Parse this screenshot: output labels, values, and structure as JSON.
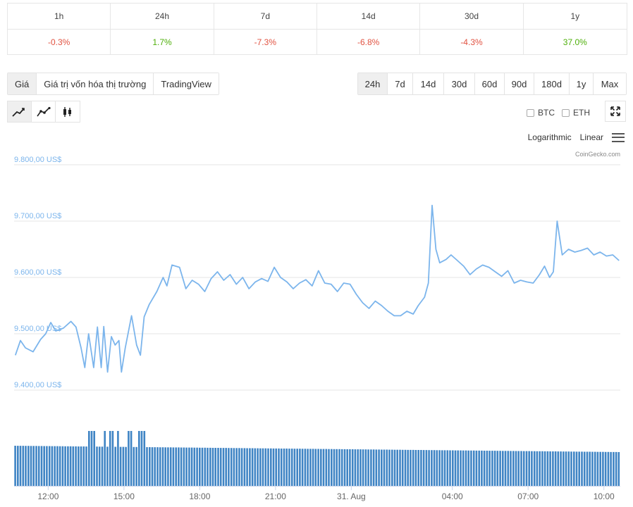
{
  "change_table": [
    {
      "period": "1h",
      "value": "-0.3%",
      "trend": "neg"
    },
    {
      "period": "24h",
      "value": "1.7%",
      "trend": "pos"
    },
    {
      "period": "7d",
      "value": "-7.3%",
      "trend": "neg"
    },
    {
      "period": "14d",
      "value": "-6.8%",
      "trend": "neg"
    },
    {
      "period": "30d",
      "value": "-4.3%",
      "trend": "neg"
    },
    {
      "period": "1y",
      "value": "37.0%",
      "trend": "pos"
    }
  ],
  "view_tabs": {
    "price": "Giá",
    "market_cap": "Giá trị vốn hóa thị trường",
    "tradingview": "TradingView",
    "active": "price"
  },
  "range_tabs": {
    "items": [
      "24h",
      "7d",
      "14d",
      "30d",
      "60d",
      "90d",
      "180d",
      "1y",
      "Max"
    ],
    "active": "24h"
  },
  "chart_types": {
    "items": [
      "line-chart-icon",
      "ohlc-line-icon",
      "candlestick-icon"
    ],
    "active": "line-chart-icon"
  },
  "compare": {
    "btc": "BTC",
    "eth": "ETH"
  },
  "scale": {
    "log": "Logarithmic",
    "linear": "Linear"
  },
  "credit": "CoinGecko.com",
  "colors": {
    "line": "#7cb5ec",
    "volume": "#3f84c4",
    "axis_label": "#7cb5ec",
    "grid": "#e6e6e6"
  },
  "chart_data": {
    "type": "line",
    "title": "",
    "xlabel": "",
    "ylabel": "",
    "y_tick_labels": [
      "9.400,00 US$",
      "9.500,00 US$",
      "9.600,00 US$",
      "9.700,00 US$",
      "9.800,00 US$"
    ],
    "y_ticks": [
      9400,
      9500,
      9600,
      9700,
      9800
    ],
    "ylim": [
      9400,
      9800
    ],
    "x_tick_labels": [
      "12:00",
      "15:00",
      "18:00",
      "21:00",
      "31. Aug",
      "04:00",
      "07:00",
      "10:00"
    ],
    "x_ticks_hours": [
      12,
      15,
      18,
      21,
      24,
      28,
      31,
      34
    ],
    "xlim_hours": [
      10.65,
      34.65
    ],
    "grid": true,
    "series": [
      {
        "values_by_hour": [
          [
            10.7,
            9462
          ],
          [
            10.9,
            9488
          ],
          [
            11.1,
            9475
          ],
          [
            11.4,
            9468
          ],
          [
            11.7,
            9490
          ],
          [
            11.9,
            9500
          ],
          [
            12.1,
            9520
          ],
          [
            12.3,
            9505
          ],
          [
            12.6,
            9510
          ],
          [
            12.9,
            9522
          ],
          [
            13.1,
            9512
          ],
          [
            13.3,
            9475
          ],
          [
            13.45,
            9440
          ],
          [
            13.6,
            9500
          ],
          [
            13.8,
            9440
          ],
          [
            13.95,
            9512
          ],
          [
            14.1,
            9440
          ],
          [
            14.2,
            9513
          ],
          [
            14.35,
            9432
          ],
          [
            14.5,
            9495
          ],
          [
            14.65,
            9480
          ],
          [
            14.8,
            9488
          ],
          [
            14.9,
            9432
          ],
          [
            15.05,
            9475
          ],
          [
            15.3,
            9532
          ],
          [
            15.5,
            9480
          ],
          [
            15.65,
            9462
          ],
          [
            15.8,
            9530
          ],
          [
            16.0,
            9552
          ],
          [
            16.3,
            9575
          ],
          [
            16.55,
            9600
          ],
          [
            16.7,
            9585
          ],
          [
            16.9,
            9622
          ],
          [
            17.2,
            9618
          ],
          [
            17.45,
            9580
          ],
          [
            17.7,
            9595
          ],
          [
            17.95,
            9588
          ],
          [
            18.2,
            9575
          ],
          [
            18.45,
            9598
          ],
          [
            18.7,
            9610
          ],
          [
            18.95,
            9595
          ],
          [
            19.2,
            9605
          ],
          [
            19.45,
            9588
          ],
          [
            19.7,
            9600
          ],
          [
            19.95,
            9580
          ],
          [
            20.2,
            9592
          ],
          [
            20.45,
            9598
          ],
          [
            20.7,
            9593
          ],
          [
            20.95,
            9618
          ],
          [
            21.2,
            9600
          ],
          [
            21.45,
            9592
          ],
          [
            21.7,
            9580
          ],
          [
            21.95,
            9590
          ],
          [
            22.2,
            9596
          ],
          [
            22.45,
            9585
          ],
          [
            22.7,
            9612
          ],
          [
            22.95,
            9590
          ],
          [
            23.2,
            9588
          ],
          [
            23.45,
            9575
          ],
          [
            23.7,
            9590
          ],
          [
            23.95,
            9588
          ],
          [
            24.2,
            9570
          ],
          [
            24.45,
            9555
          ],
          [
            24.7,
            9545
          ],
          [
            24.95,
            9558
          ],
          [
            25.2,
            9550
          ],
          [
            25.45,
            9540
          ],
          [
            25.7,
            9532
          ],
          [
            25.95,
            9532
          ],
          [
            26.2,
            9540
          ],
          [
            26.45,
            9535
          ],
          [
            26.65,
            9550
          ],
          [
            26.9,
            9565
          ],
          [
            27.05,
            9590
          ],
          [
            27.2,
            9728
          ],
          [
            27.35,
            9650
          ],
          [
            27.5,
            9626
          ],
          [
            27.75,
            9632
          ],
          [
            27.95,
            9640
          ],
          [
            28.2,
            9630
          ],
          [
            28.45,
            9620
          ],
          [
            28.7,
            9605
          ],
          [
            28.95,
            9615
          ],
          [
            29.2,
            9622
          ],
          [
            29.45,
            9618
          ],
          [
            29.7,
            9610
          ],
          [
            29.95,
            9602
          ],
          [
            30.2,
            9612
          ],
          [
            30.45,
            9590
          ],
          [
            30.7,
            9595
          ],
          [
            30.95,
            9592
          ],
          [
            31.2,
            9590
          ],
          [
            31.45,
            9605
          ],
          [
            31.65,
            9620
          ],
          [
            31.85,
            9600
          ],
          [
            32.0,
            9610
          ],
          [
            32.15,
            9700
          ],
          [
            32.35,
            9640
          ],
          [
            32.6,
            9650
          ],
          [
            32.85,
            9645
          ],
          [
            33.1,
            9648
          ],
          [
            33.35,
            9652
          ],
          [
            33.6,
            9640
          ],
          [
            33.85,
            9645
          ],
          [
            34.1,
            9638
          ],
          [
            34.35,
            9640
          ],
          [
            34.6,
            9630
          ]
        ]
      }
    ],
    "volume_relative": {
      "baseline": 0.72,
      "spike_ranges_hours": [
        [
          13.6,
          13.9
        ],
        [
          14.15,
          14.3
        ],
        [
          14.45,
          14.6
        ],
        [
          14.75,
          14.85
        ],
        [
          15.1,
          15.3
        ],
        [
          15.6,
          15.85
        ]
      ],
      "spike_level": 1.0
    }
  }
}
